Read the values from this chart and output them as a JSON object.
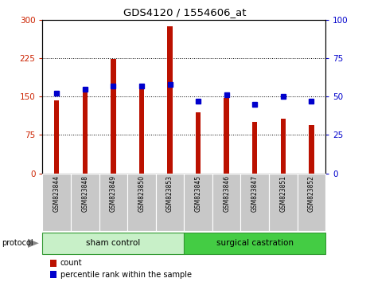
{
  "title": "GDS4120 / 1554606_at",
  "samples": [
    "GSM823844",
    "GSM823848",
    "GSM823849",
    "GSM823850",
    "GSM823853",
    "GSM823845",
    "GSM823846",
    "GSM823847",
    "GSM823851",
    "GSM823852"
  ],
  "count_values": [
    143,
    162,
    224,
    175,
    287,
    120,
    148,
    100,
    107,
    95
  ],
  "percentile_values": [
    52,
    55,
    57,
    57,
    58,
    47,
    51,
    45,
    50,
    47
  ],
  "groups": [
    {
      "label": "sham control",
      "start": 0,
      "end": 5,
      "color": "#C8F0C8"
    },
    {
      "label": "surgical castration",
      "start": 5,
      "end": 10,
      "color": "#44CC44"
    }
  ],
  "left_ylim": [
    0,
    300
  ],
  "right_ylim": [
    0,
    100
  ],
  "left_yticks": [
    0,
    75,
    150,
    225,
    300
  ],
  "right_yticks": [
    0,
    25,
    50,
    75,
    100
  ],
  "left_tick_color": "#CC2200",
  "right_tick_color": "#0000CC",
  "bar_color": "#BB1100",
  "dot_color": "#0000CC",
  "grid_color": "#000000",
  "bg_color": "#FFFFFF",
  "label_bg_color": "#C8C8C8",
  "protocol_label": "protocol",
  "legend_count": "count",
  "legend_percentile": "percentile rank within the sample"
}
